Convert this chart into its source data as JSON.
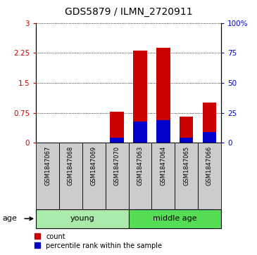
{
  "title": "GDS5879 / ILMN_2720911",
  "samples": [
    "GSM1847067",
    "GSM1847068",
    "GSM1847069",
    "GSM1847070",
    "GSM1847063",
    "GSM1847064",
    "GSM1847065",
    "GSM1847066"
  ],
  "count_values": [
    0.0,
    0.0,
    0.0,
    0.78,
    2.3,
    2.37,
    0.65,
    1.0
  ],
  "percentile_values": [
    0.0,
    0.0,
    0.0,
    4.0,
    18.0,
    19.0,
    4.0,
    9.0
  ],
  "groups": [
    {
      "label": "young",
      "start": 0,
      "end": 3
    },
    {
      "label": "middle age",
      "start": 4,
      "end": 7
    }
  ],
  "ylim_left": [
    0,
    3
  ],
  "ylim_right": [
    0,
    100
  ],
  "yticks_left": [
    0,
    0.75,
    1.5,
    2.25,
    3
  ],
  "yticks_right": [
    0,
    25,
    50,
    75,
    100
  ],
  "ytick_labels_right": [
    "0",
    "25",
    "50",
    "75",
    "100%"
  ],
  "bar_color_red": "#cc0000",
  "bar_color_blue": "#0000cc",
  "bg_sample": "#cccccc",
  "bg_group_young": "#aaeaaa",
  "bg_group_middle": "#55dd55",
  "legend_count": "count",
  "legend_pct": "percentile rank within the sample",
  "age_label": "age",
  "left_axis_color": "#cc0000",
  "right_axis_color": "#0000cc",
  "bar_width": 0.6
}
